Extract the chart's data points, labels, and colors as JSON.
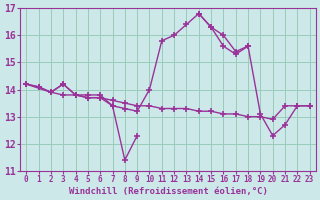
{
  "background_color": "#cce8e8",
  "grid_color": "#99ccbb",
  "line_color": "#993399",
  "marker": "+",
  "markersize": 5,
  "markeredgewidth": 1.2,
  "linewidth": 1.0,
  "xlim": [
    -0.5,
    23.5
  ],
  "ylim": [
    11,
    17
  ],
  "xlabel": "Windchill (Refroidissement éolien,°C)",
  "xlabel_fontsize": 6.5,
  "ytick_fontsize": 7,
  "xtick_fontsize": 5.5,
  "xticks": [
    0,
    1,
    2,
    3,
    4,
    5,
    6,
    7,
    8,
    9,
    10,
    11,
    12,
    13,
    14,
    15,
    16,
    17,
    18,
    19,
    20,
    21,
    22,
    23
  ],
  "yticks": [
    11,
    12,
    13,
    14,
    15,
    16,
    17
  ],
  "series": [
    {
      "x": [
        0,
        1,
        2,
        3,
        4,
        5,
        6,
        7,
        8,
        9
      ],
      "y": [
        14.2,
        14.1,
        13.9,
        14.2,
        13.8,
        13.8,
        13.8,
        13.4,
        11.4,
        12.3
      ]
    },
    {
      "x": [
        0,
        2,
        3,
        4,
        5,
        6,
        7,
        8,
        9,
        10,
        11,
        12,
        13,
        14,
        15,
        16,
        17,
        18
      ],
      "y": [
        14.2,
        13.9,
        14.2,
        13.8,
        13.7,
        13.7,
        13.4,
        13.3,
        13.2,
        14.0,
        15.8,
        16.0,
        16.4,
        16.8,
        16.3,
        16.0,
        15.4,
        15.6
      ]
    },
    {
      "x": [
        0,
        1,
        2,
        3,
        4,
        5,
        6,
        7,
        8,
        9,
        10,
        11,
        12,
        13,
        14,
        15,
        16,
        17,
        18,
        19,
        20,
        21,
        22,
        23
      ],
      "y": [
        14.2,
        14.1,
        13.9,
        13.8,
        13.8,
        13.7,
        13.7,
        13.6,
        13.5,
        13.4,
        13.4,
        13.3,
        13.3,
        13.3,
        13.2,
        13.2,
        13.1,
        13.1,
        13.0,
        13.0,
        12.9,
        13.4,
        13.4,
        13.4
      ]
    },
    {
      "x": [
        14,
        15,
        16,
        17,
        18,
        19,
        20,
        21,
        22,
        23
      ],
      "y": [
        16.8,
        16.3,
        15.6,
        15.3,
        15.6,
        13.1,
        12.3,
        12.7,
        13.4,
        13.4
      ]
    }
  ]
}
